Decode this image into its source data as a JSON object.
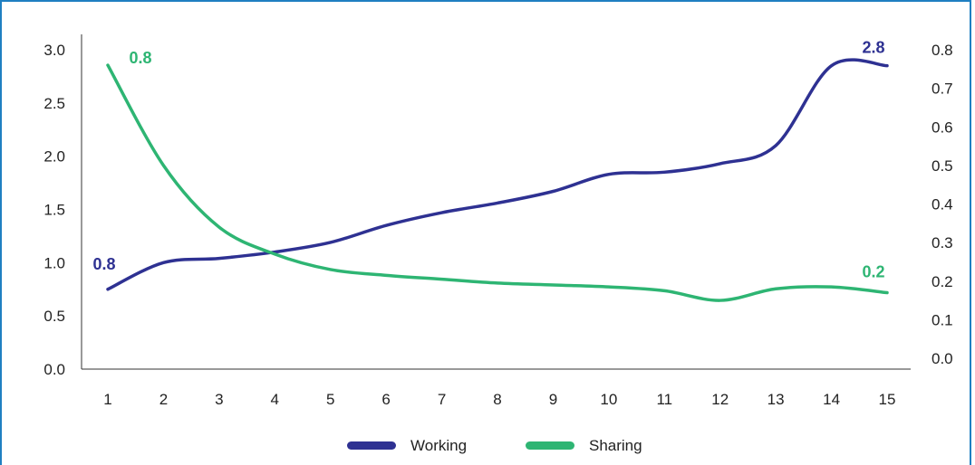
{
  "chart_data": {
    "type": "line",
    "x": [
      1,
      2,
      3,
      4,
      5,
      6,
      7,
      8,
      9,
      10,
      11,
      12,
      13,
      14,
      15
    ],
    "y_left_ticks": [
      "0.0",
      "0.5",
      "1.0",
      "1.5",
      "2.0",
      "2.5",
      "3.0"
    ],
    "y_right_ticks": [
      "0.0",
      "0.1",
      "0.2",
      "0.3",
      "0.4",
      "0.5",
      "0.6",
      "0.7",
      "0.8"
    ],
    "ylim_left": [
      0,
      3.0
    ],
    "ylim_right": [
      0,
      0.8
    ],
    "series": [
      {
        "name": "Working",
        "axis": "left",
        "color": "#2e3192",
        "values": [
          0.75,
          1.0,
          1.04,
          1.1,
          1.19,
          1.35,
          1.47,
          1.56,
          1.67,
          1.83,
          1.85,
          1.93,
          2.1,
          2.85,
          2.85
        ]
      },
      {
        "name": "Sharing",
        "axis": "right",
        "color": "#2eb573",
        "values": [
          0.76,
          0.5,
          0.34,
          0.27,
          0.23,
          0.215,
          0.205,
          0.195,
          0.19,
          0.185,
          0.175,
          0.15,
          0.18,
          0.185,
          0.17
        ]
      }
    ],
    "data_labels": [
      {
        "series": "Working",
        "x": 1,
        "text": "0.8"
      },
      {
        "series": "Working",
        "x": 15,
        "text": "2.8"
      },
      {
        "series": "Sharing",
        "x": 1,
        "text": "0.8"
      },
      {
        "series": "Sharing",
        "x": 15,
        "text": "0.2"
      }
    ],
    "legend_position": "bottom",
    "grid": false
  }
}
